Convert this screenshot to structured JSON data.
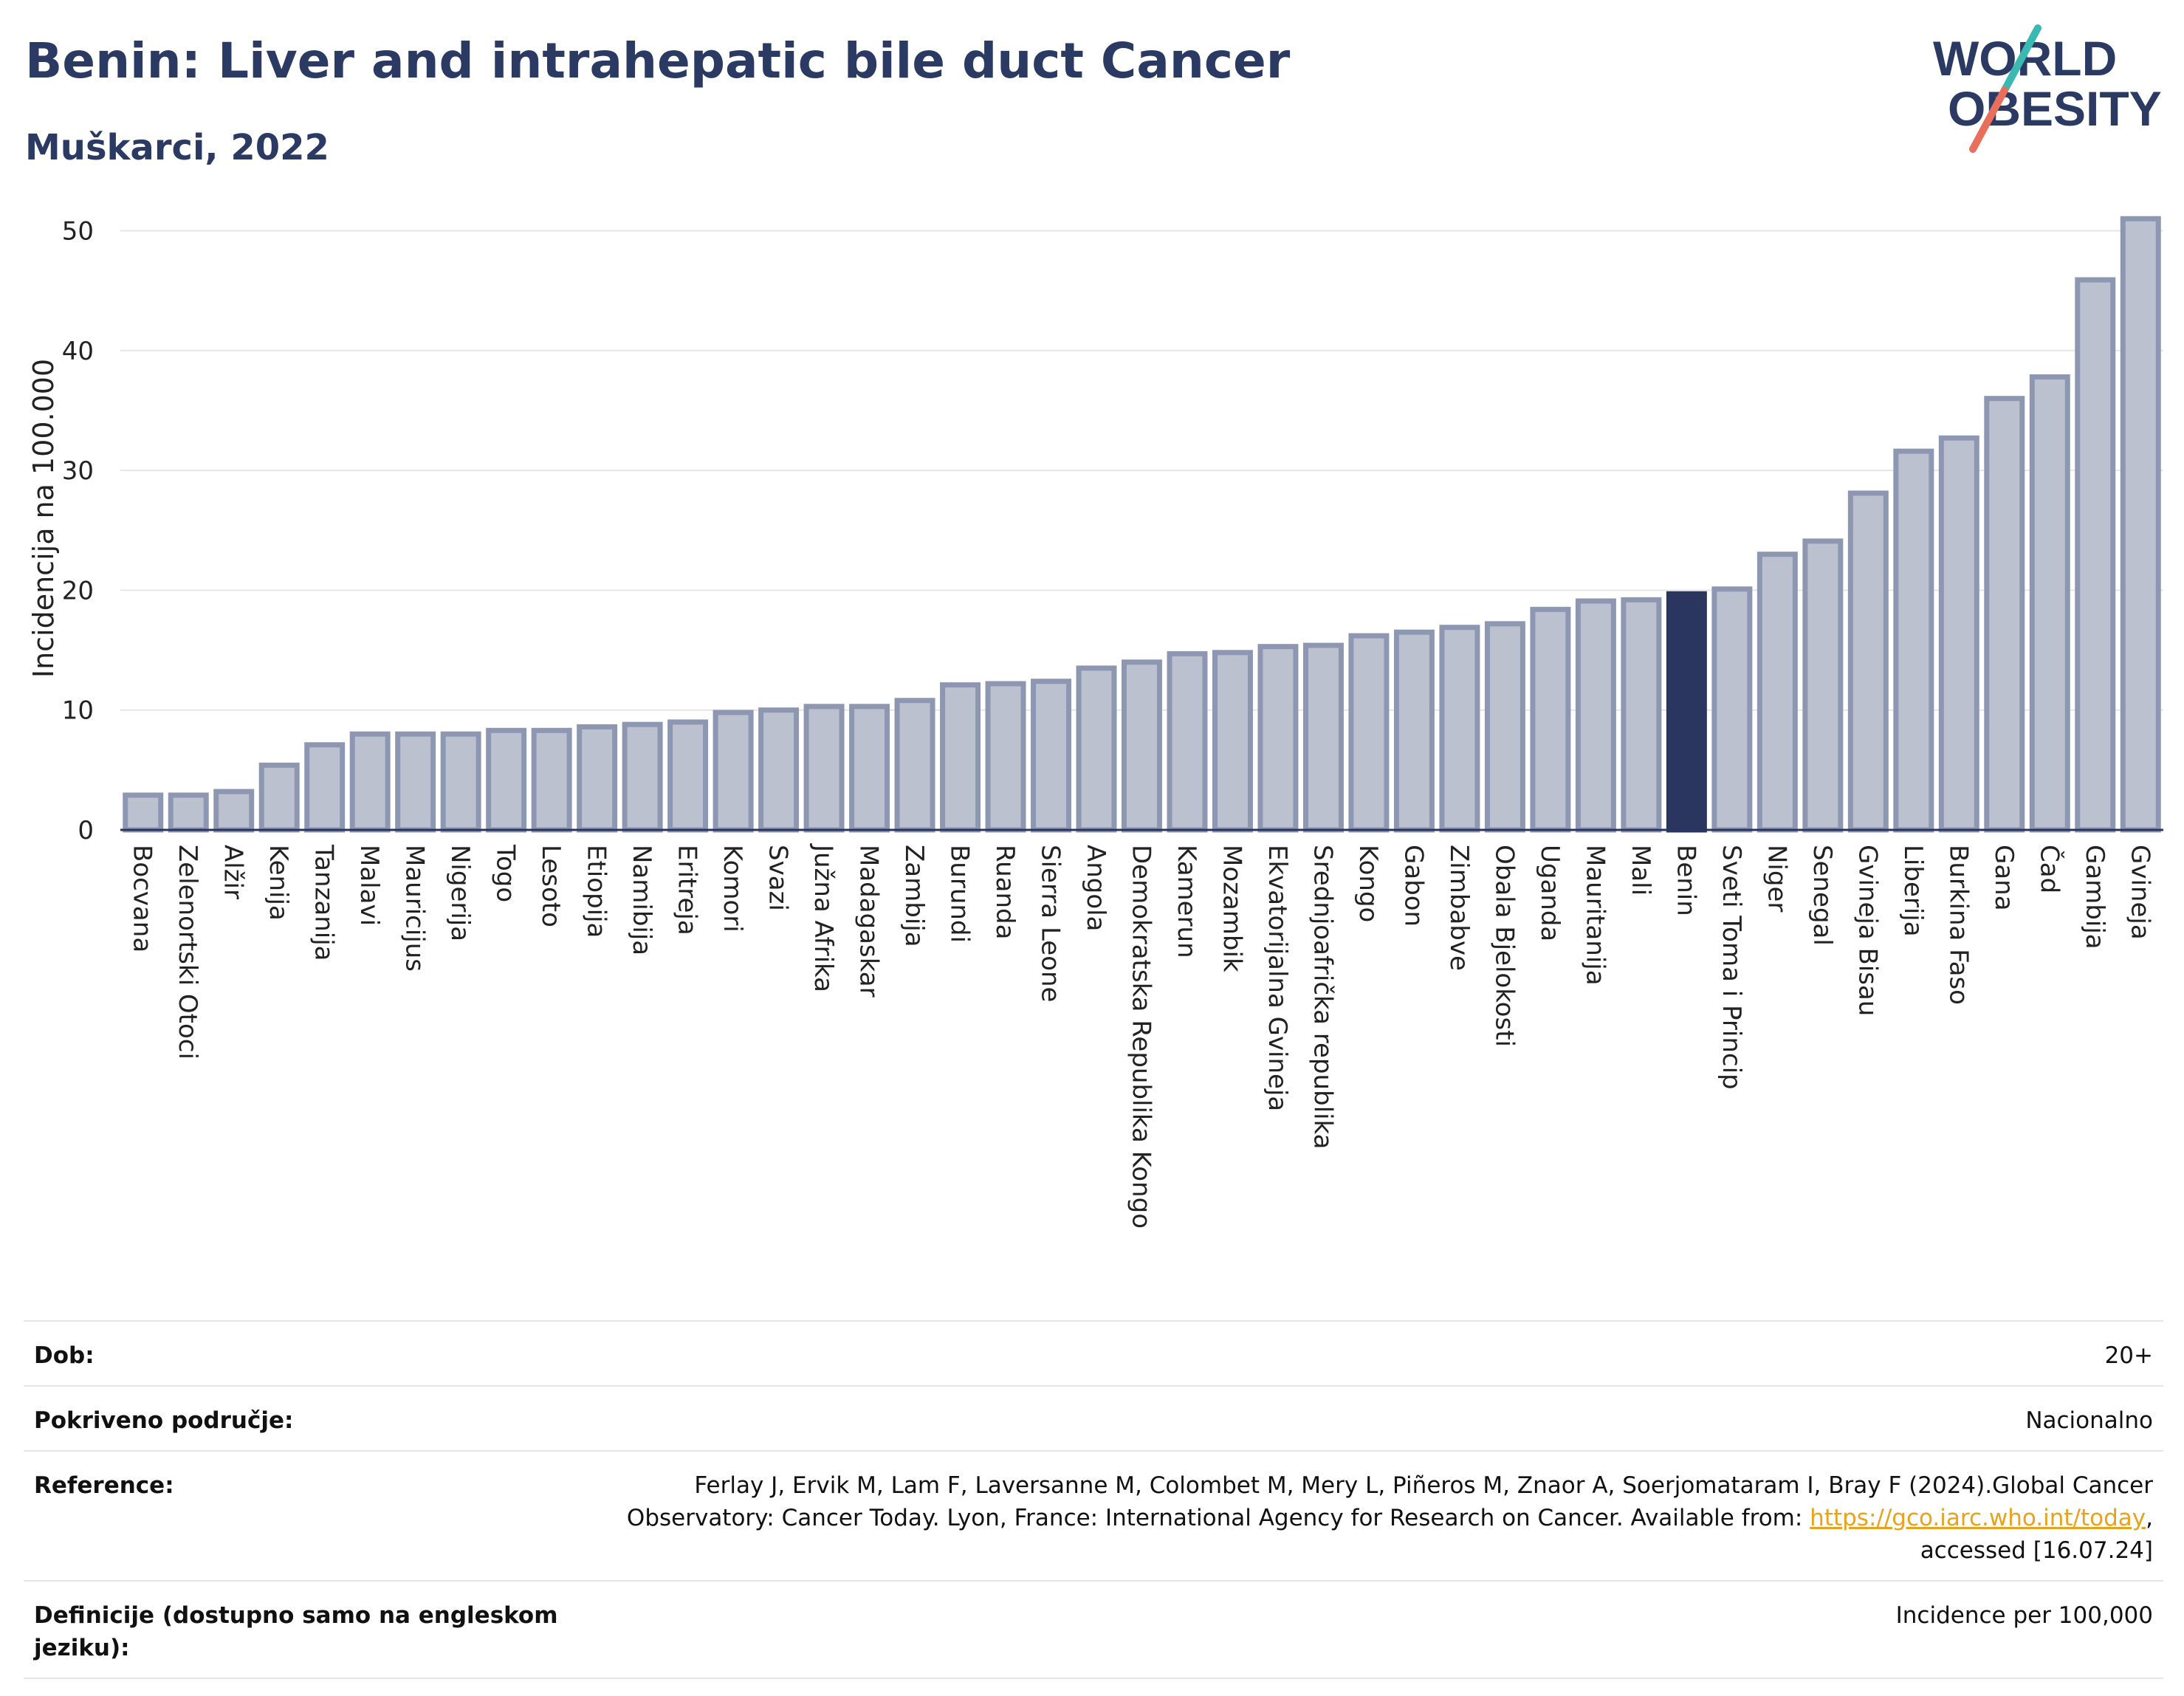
{
  "header": {
    "title": "Benin: Liver and intrahepatic bile duct Cancer",
    "subtitle": "Muškarci, 2022",
    "logo_line1": "WORLD",
    "logo_line2": "OBESITY"
  },
  "chart_data": {
    "type": "bar",
    "ylabel": "Incidencija na 100.000",
    "ylim": [
      0,
      52
    ],
    "yticks": [
      0,
      10,
      20,
      30,
      40,
      50
    ],
    "grid": true,
    "highlight": "Benin",
    "colors": {
      "bar": "#bcc1cf",
      "bar_edge": "#8e97b2",
      "highlight": "#2b3660"
    },
    "categories": [
      "Bocvana",
      "Zelenortski Otoci",
      "Alžir",
      "Kenija",
      "Tanzanija",
      "Malavi",
      "Mauricijus",
      "Nigerija",
      "Togo",
      "Lesoto",
      "Etiopija",
      "Namibija",
      "Eritreja",
      "Komori",
      "Svazi",
      "Južna Afrika",
      "Madagaskar",
      "Zambija",
      "Burundi",
      "Ruanda",
      "Sierra Leone",
      "Angola",
      "Demokratska Republika Kongo",
      "Kamerun",
      "Mozambik",
      "Ekvatorijalna Gvineja",
      "Srednjoafrička republika",
      "Kongo",
      "Gabon",
      "Zimbabve",
      "Obala Bjelokosti",
      "Uganda",
      "Mauritanija",
      "Mali",
      "Benin",
      "Sveti Toma i Princip",
      "Niger",
      "Senegal",
      "Gvineja Bisau",
      "Liberija",
      "Burkina Faso",
      "Gana",
      "Čad",
      "Gambija",
      "Gvineja"
    ],
    "values": [
      2.9,
      2.9,
      3.2,
      5.4,
      7.1,
      8.0,
      8.0,
      8.0,
      8.3,
      8.3,
      8.6,
      8.8,
      9.0,
      9.8,
      10.0,
      10.3,
      10.3,
      10.8,
      12.1,
      12.2,
      12.4,
      13.5,
      14.0,
      14.7,
      14.8,
      15.3,
      15.4,
      16.2,
      16.5,
      16.9,
      17.2,
      18.4,
      19.1,
      19.2,
      19.7,
      20.1,
      23.0,
      24.1,
      28.1,
      31.6,
      32.7,
      36.0,
      37.8,
      45.9,
      51.0
    ]
  },
  "info": {
    "age_label": "Dob:",
    "age_value": "20+",
    "coverage_label": "Pokriveno područje:",
    "coverage_value": "Nacionalno",
    "reference_label": "Reference:",
    "reference_text": "Ferlay J, Ervik M, Lam F, Laversanne M, Colombet M, Mery L, Piñeros M, Znaor A, Soerjomataram I, Bray F (2024).Global Cancer Observatory: Cancer Today. Lyon, France: International Agency for Research on Cancer. Available from: ",
    "reference_link": "https://gco.iarc.who.int/today",
    "reference_suffix": ", accessed [16.07.24]",
    "definitions_label": "Definicije (dostupno samo na engleskom jeziku):",
    "definitions_value": "Incidence per 100,000"
  }
}
